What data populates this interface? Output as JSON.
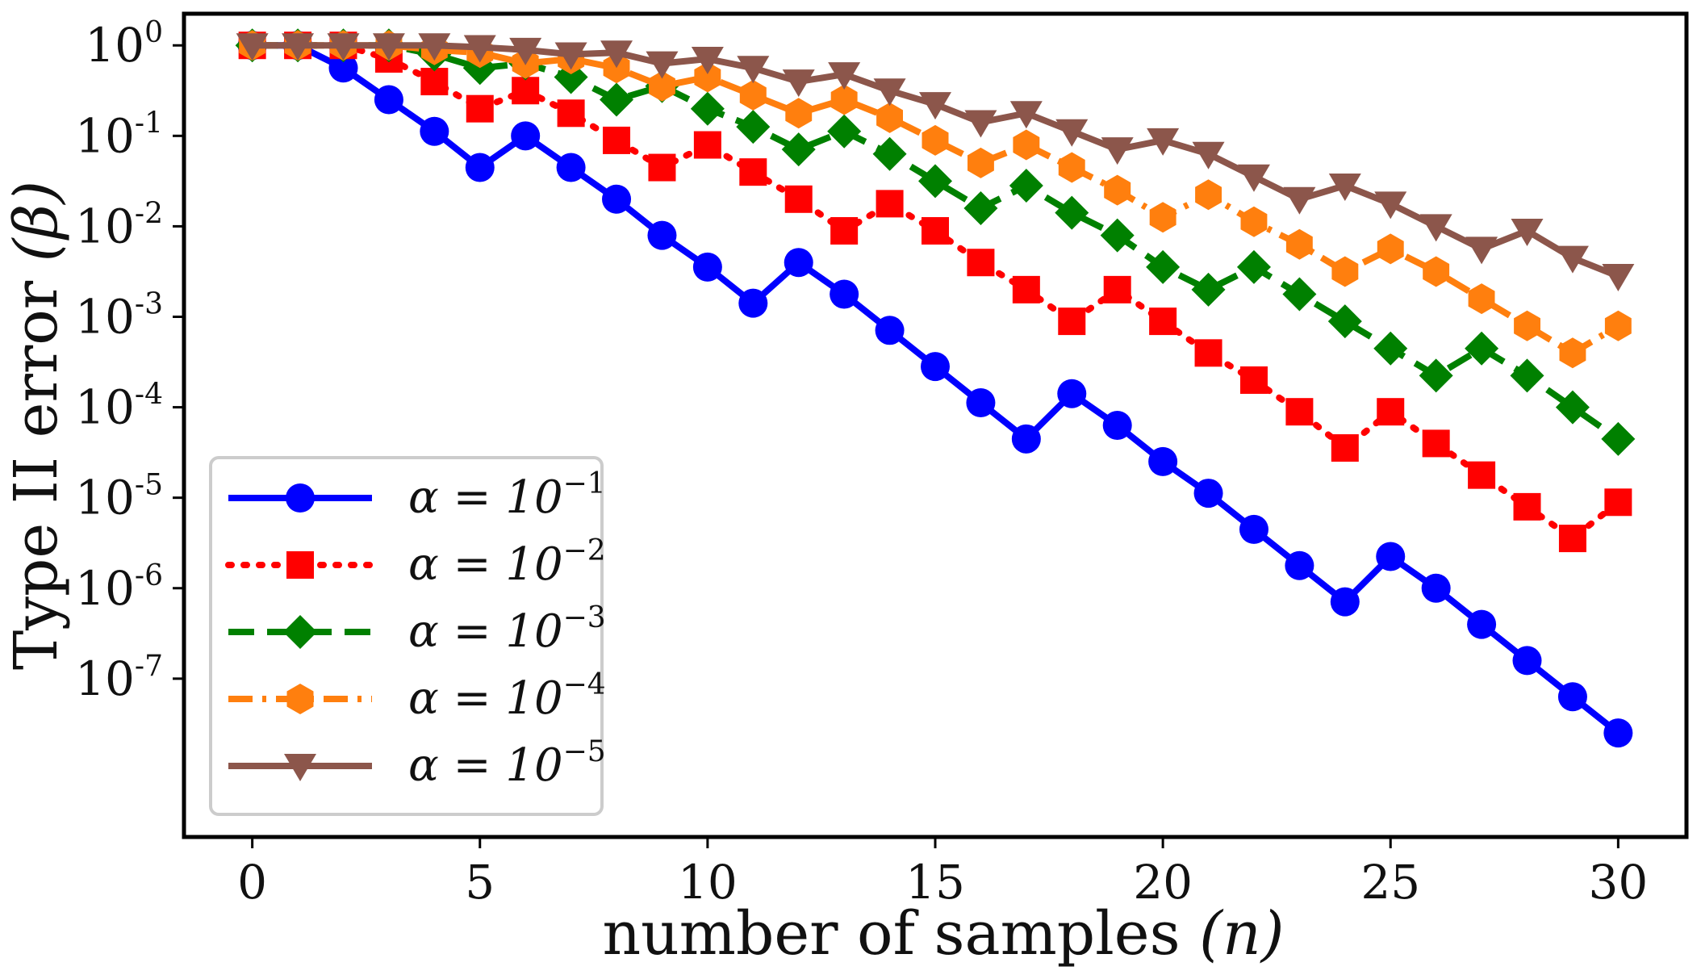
{
  "chart_data": {
    "type": "line",
    "title": "",
    "xlabel": "number of samples",
    "xlabel_var": "(n)",
    "ylabel": "Type II error",
    "ylabel_var": "(β)",
    "xlim": [
      -1.5,
      31.5
    ],
    "ylim_log10": [
      -8.75,
      0.35
    ],
    "yscale": "log",
    "grid": false,
    "legend_position": "lower-left",
    "x_ticks": [
      0,
      5,
      10,
      15,
      20,
      25,
      30
    ],
    "y_ticks": [
      {
        "exp": 0,
        "base": "10",
        "sup": "0"
      },
      {
        "exp": -1,
        "base": "10",
        "sup": "-1"
      },
      {
        "exp": -2,
        "base": "10",
        "sup": "-2"
      },
      {
        "exp": -3,
        "base": "10",
        "sup": "-3"
      },
      {
        "exp": -4,
        "base": "10",
        "sup": "-4"
      },
      {
        "exp": -5,
        "base": "10",
        "sup": "-5"
      },
      {
        "exp": -6,
        "base": "10",
        "sup": "-6"
      },
      {
        "exp": -7,
        "base": "10",
        "sup": "-7"
      }
    ],
    "x": [
      0,
      1,
      2,
      3,
      4,
      5,
      6,
      7,
      8,
      9,
      10,
      11,
      12,
      13,
      14,
      15,
      16,
      17,
      18,
      19,
      20,
      21,
      22,
      23,
      24,
      25,
      26,
      27,
      28,
      29,
      30
    ],
    "series": [
      {
        "name": "α = 10^-1",
        "label_main": "α = 10",
        "label_sup": "−1",
        "color": "#0000ff",
        "dash": "solid",
        "marker": "circle",
        "log10_values": [
          0,
          0,
          -0.25,
          -0.6,
          -0.95,
          -1.35,
          -1.0,
          -1.35,
          -1.7,
          -2.1,
          -2.45,
          -2.85,
          -2.4,
          -2.75,
          -3.15,
          -3.55,
          -3.95,
          -4.35,
          -3.85,
          -4.2,
          -4.6,
          -4.95,
          -5.35,
          -5.75,
          -6.15,
          -5.65,
          -6.0,
          -6.4,
          -6.8,
          -7.2,
          -7.6
        ]
      },
      {
        "name": "α = 10^-2",
        "label_main": "α = 10",
        "label_sup": "−2",
        "color": "#ff0000",
        "dash": "dotted",
        "marker": "square",
        "log10_values": [
          0,
          0,
          0,
          -0.15,
          -0.4,
          -0.7,
          -0.5,
          -0.75,
          -1.05,
          -1.35,
          -1.1,
          -1.4,
          -1.7,
          -2.05,
          -1.75,
          -2.05,
          -2.4,
          -2.7,
          -3.05,
          -2.7,
          -3.05,
          -3.4,
          -3.7,
          -4.05,
          -4.45,
          -4.05,
          -4.4,
          -4.75,
          -5.1,
          -5.45,
          -5.05
        ]
      },
      {
        "name": "α = 10^-3",
        "label_main": "α = 10",
        "label_sup": "−3",
        "color": "#008000",
        "dash": "dashed",
        "marker": "diamond",
        "log10_values": [
          0,
          0,
          0,
          0,
          -0.1,
          -0.25,
          -0.2,
          -0.35,
          -0.6,
          -0.45,
          -0.7,
          -0.9,
          -1.15,
          -0.95,
          -1.2,
          -1.5,
          -1.8,
          -1.55,
          -1.85,
          -2.1,
          -2.45,
          -2.7,
          -2.45,
          -2.75,
          -3.05,
          -3.35,
          -3.65,
          -3.35,
          -3.65,
          -4.0,
          -4.35
        ]
      },
      {
        "name": "α = 10^-4",
        "label_main": "α = 10",
        "label_sup": "−4",
        "color": "#ff7f0e",
        "dash": "dashdot",
        "marker": "hexagon",
        "log10_values": [
          0,
          0,
          0,
          0,
          -0.05,
          -0.08,
          -0.2,
          -0.15,
          -0.25,
          -0.45,
          -0.35,
          -0.55,
          -0.75,
          -0.6,
          -0.8,
          -1.05,
          -1.3,
          -1.1,
          -1.35,
          -1.6,
          -1.9,
          -1.65,
          -1.95,
          -2.2,
          -2.5,
          -2.25,
          -2.5,
          -2.8,
          -3.1,
          -3.4,
          -3.1
        ]
      },
      {
        "name": "α = 10^-5",
        "label_main": "α = 10",
        "label_sup": "−5",
        "color": "#8c564b",
        "dash": "solid",
        "marker": "triangle-down",
        "log10_values": [
          0,
          0,
          0,
          0,
          0,
          -0.02,
          -0.05,
          -0.1,
          -0.08,
          -0.2,
          -0.15,
          -0.25,
          -0.4,
          -0.32,
          -0.5,
          -0.65,
          -0.85,
          -0.75,
          -0.95,
          -1.15,
          -1.05,
          -1.2,
          -1.45,
          -1.7,
          -1.55,
          -1.75,
          -2.0,
          -2.25,
          -2.05,
          -2.35,
          -2.55
        ]
      }
    ]
  }
}
